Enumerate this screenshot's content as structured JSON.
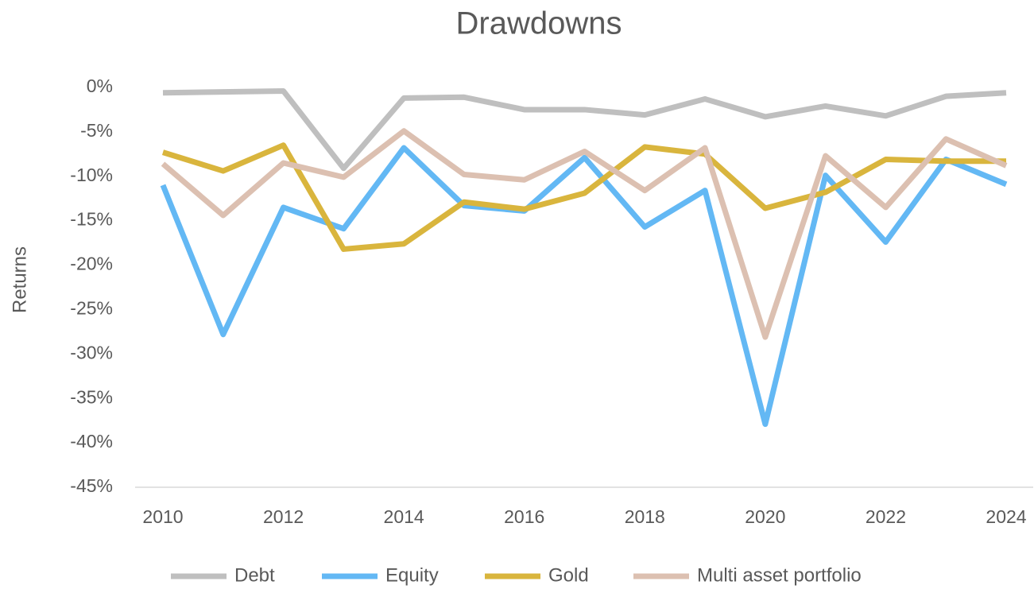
{
  "chart_data": {
    "type": "line",
    "title": "Drawdowns",
    "y_label": "Returns",
    "x": [
      2010,
      2011,
      2012,
      2013,
      2014,
      2015,
      2016,
      2017,
      2018,
      2019,
      2020,
      2021,
      2022,
      2023,
      2024
    ],
    "xlim": [
      2010,
      2024
    ],
    "xticks": [
      2010,
      2012,
      2014,
      2016,
      2018,
      2020,
      2022,
      2024
    ],
    "ylim": [
      -45,
      0
    ],
    "yticks": [
      {
        "value": 0,
        "label": "0%"
      },
      {
        "value": -5,
        "label": "-5%"
      },
      {
        "value": -10,
        "label": "-10%"
      },
      {
        "value": -15,
        "label": "-15%"
      },
      {
        "value": -20,
        "label": "-20%"
      },
      {
        "value": -25,
        "label": "-25%"
      },
      {
        "value": -30,
        "label": "-30%"
      },
      {
        "value": -35,
        "label": "-35%"
      },
      {
        "value": -40,
        "label": "-40%"
      },
      {
        "value": -45,
        "label": "-45%"
      }
    ],
    "grid": false,
    "legend": "bottom",
    "series": [
      {
        "name": "Debt",
        "color": "#bfbfbf",
        "values": [
          -0.6,
          -0.5,
          -0.4,
          -9.1,
          -1.2,
          -1.1,
          -2.5,
          -2.5,
          -3.1,
          -1.3,
          -3.3,
          -2.1,
          -3.2,
          -1.0,
          -0.6
        ]
      },
      {
        "name": "Equity",
        "color": "#63b8f4",
        "values": [
          -11.0,
          -27.8,
          -13.5,
          -15.9,
          -6.8,
          -13.3,
          -13.9,
          -7.9,
          -15.7,
          -11.6,
          -37.9,
          -9.9,
          -17.4,
          -8.1,
          -10.9
        ]
      },
      {
        "name": "Gold",
        "color": "#d9b53d",
        "values": [
          -7.3,
          -9.4,
          -6.5,
          -18.2,
          -17.6,
          -12.9,
          -13.7,
          -11.9,
          -6.7,
          -7.5,
          -13.6,
          -11.8,
          -8.1,
          -8.3,
          -8.3
        ]
      },
      {
        "name": "Multi asset portfolio",
        "color": "#dcc0b1",
        "values": [
          -8.6,
          -14.4,
          -8.5,
          -10.1,
          -4.9,
          -9.8,
          -10.4,
          -7.2,
          -11.6,
          -6.8,
          -28.1,
          -7.7,
          -13.5,
          -5.8,
          -8.8
        ]
      }
    ]
  }
}
